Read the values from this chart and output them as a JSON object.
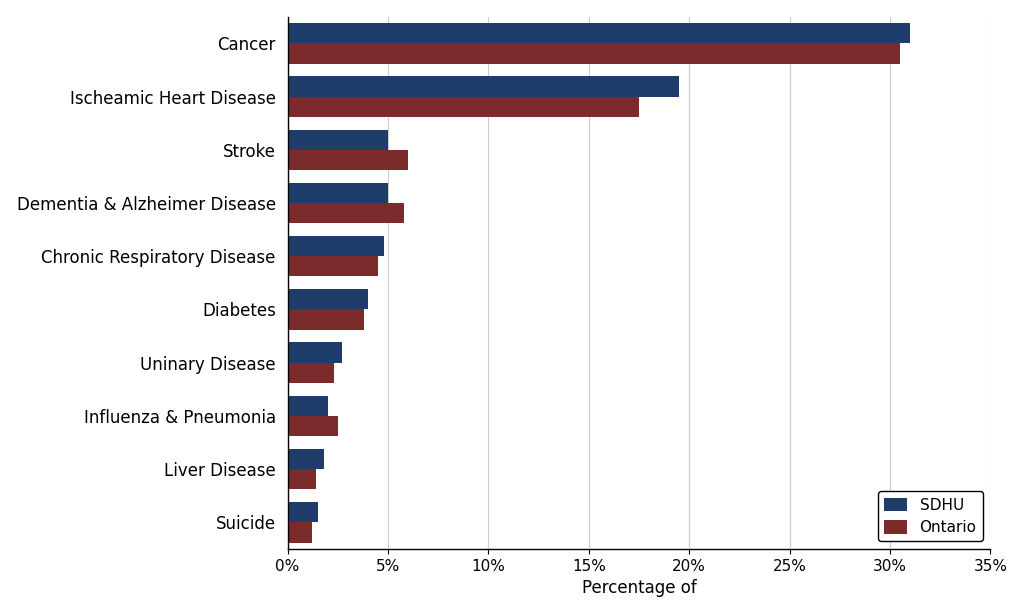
{
  "categories": [
    "Cancer",
    "Ischeamic Heart Disease",
    "Stroke",
    "Dementia & Alzheimer Disease",
    "Chronic Respiratory Disease",
    "Diabetes",
    "Uninary Disease",
    "Influenza & Pneumonia",
    "Liver Disease",
    "Suicide"
  ],
  "sdhu": [
    31.0,
    19.5,
    5.0,
    5.0,
    4.8,
    4.0,
    2.7,
    2.0,
    1.8,
    1.5
  ],
  "ontario": [
    30.5,
    17.5,
    6.0,
    5.8,
    4.5,
    3.8,
    2.3,
    2.5,
    1.4,
    1.2
  ],
  "sdhu_color": "#1f3d6b",
  "ontario_color": "#7b2b2b",
  "xlabel": "Percentage of",
  "legend_labels": [
    "SDHU",
    "Ontario"
  ],
  "xlim": [
    0,
    35
  ],
  "xticks": [
    0,
    5,
    10,
    15,
    20,
    25,
    30,
    35
  ],
  "background_color": "#ffffff",
  "bar_height": 0.38,
  "label_fontsize": 12,
  "tick_fontsize": 11,
  "xlabel_fontsize": 12
}
